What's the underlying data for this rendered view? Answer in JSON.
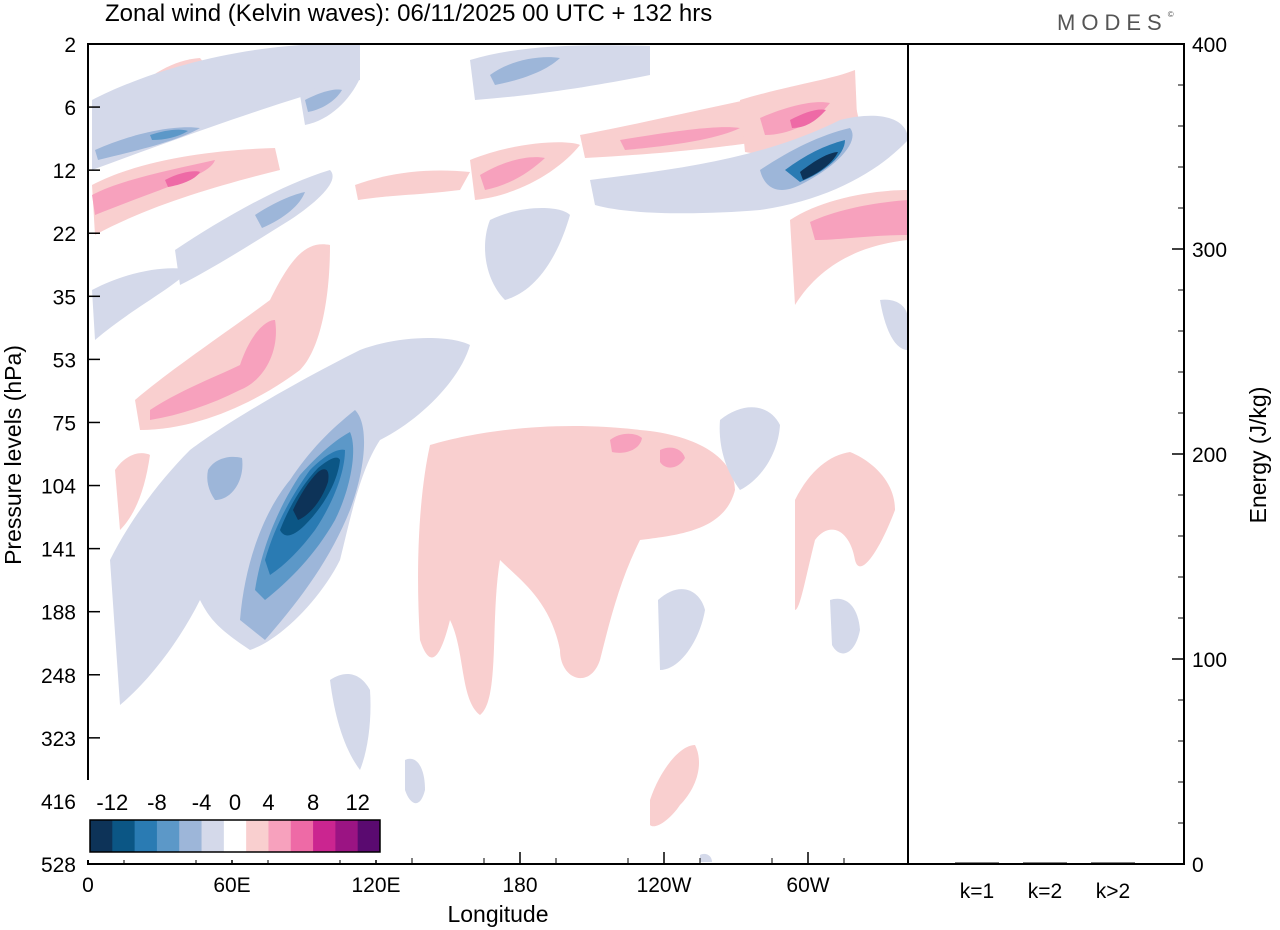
{
  "title": "Zonal wind (Kelvin waves):  06/11/2025  00 UTC  + 132 hrs",
  "logo": "MODES",
  "logo_mark": "©",
  "colors": {
    "neg": [
      "#0d3358",
      "#0b5685",
      "#2a7bb3",
      "#5c98c8",
      "#9db6d9",
      "#d4d9ea"
    ],
    "zero": "#ffffff",
    "pos": [
      "#f9cfcf",
      "#f7a1bd",
      "#ee6aa6",
      "#cb2590",
      "#9b1483",
      "#5a0a70"
    ]
  },
  "chart_data": [
    {
      "type": "heatmap",
      "title": "Zonal wind (Kelvin waves)",
      "xlabel": "Longitude",
      "ylabel": "Pressure levels (hPa)",
      "x_ticks": [
        "0",
        "60E",
        "120E",
        "180",
        "120W",
        "60W"
      ],
      "y_ticks": [
        "2",
        "6",
        "12",
        "22",
        "35",
        "53",
        "75",
        "104",
        "141",
        "188",
        "248",
        "323",
        "416",
        "528"
      ],
      "colorbar_levels": [
        "-12",
        "-8",
        "-4",
        "0",
        "4",
        "8",
        "12"
      ],
      "features": [
        {
          "name": "negative-core-110E",
          "lon": 97,
          "level": "104",
          "value": -14
        },
        {
          "name": "negative-band-upper",
          "lon": 300,
          "level": "12",
          "value": -12
        },
        {
          "name": "positive-band-west-pacific",
          "lon": 75,
          "level": "75",
          "value": 6
        },
        {
          "name": "positive-region-central-pacific",
          "lon": 200,
          "level": "104",
          "value": 3
        },
        {
          "name": "positive-band-upper-east",
          "lon": 295,
          "level": "6",
          "value": 8
        }
      ]
    },
    {
      "type": "bar",
      "ylabel": "Energy (J/kg)",
      "categories": [
        "k=1",
        "k=2",
        "k>2"
      ],
      "values": [
        0.5,
        0.3,
        0.5
      ],
      "ylim": [
        0,
        400
      ],
      "y_ticks": [
        "0",
        "100",
        "200",
        "300",
        "400"
      ]
    }
  ]
}
